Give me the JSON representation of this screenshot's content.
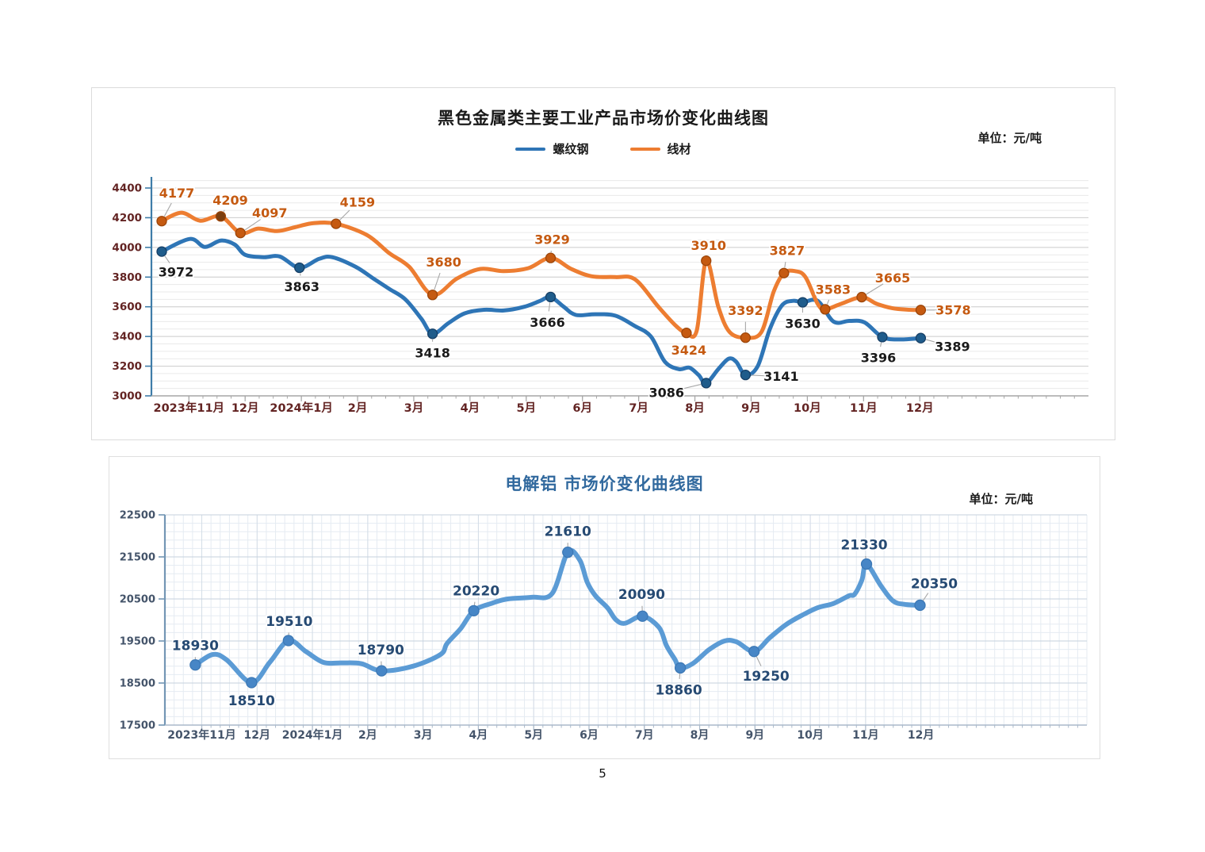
{
  "page_number": "5",
  "chart_data": [
    {
      "type": "line",
      "title": "黑色金属类主要工业产品市场价变化曲线图",
      "unit_label": "单位：元/吨",
      "legend_position": "top-center",
      "grid": "horizontal-minor-on",
      "ylim": [
        3000,
        4400
      ],
      "yticks": [
        3000,
        3200,
        3400,
        3600,
        3800,
        4000,
        4200,
        4400
      ],
      "minor_y_unit": 50,
      "axis_color": "#3E7CA8",
      "x_axis_color": "#A6A6A6",
      "tick_label_color": "#632423",
      "x_start_frac": 0.04,
      "x_step_frac": 0.06,
      "categories": [
        "2023年11月",
        "12月",
        "2024年1月",
        "2月",
        "3月",
        "4月",
        "5月",
        "6月",
        "7月",
        "8月",
        "9月",
        "10月",
        "11月",
        "12月"
      ],
      "series": [
        {
          "name": "螺纹钢",
          "color": "#2E75B6",
          "marker_color": "#1F5C8B",
          "marker_stroke": "#163F66",
          "label_color": "#1A1A1A",
          "points": [
            {
              "x": 0.011,
              "v": 3972,
              "t": "3972",
              "dx": 18,
              "dy": 26
            },
            [
              0.041,
              4057
            ],
            [
              0.057,
              4003
            ],
            [
              0.074,
              4046
            ],
            [
              0.089,
              4019
            ],
            [
              0.1,
              3950
            ],
            [
              0.12,
              3934
            ],
            [
              0.137,
              3939
            ],
            {
              "x": 0.158,
              "v": 3863,
              "t": "3863",
              "dx": 3,
              "dy": 24
            },
            [
              0.179,
              3923
            ],
            [
              0.193,
              3934
            ],
            [
              0.218,
              3869
            ],
            [
              0.237,
              3790
            ],
            [
              0.254,
              3720
            ],
            [
              0.271,
              3650
            ],
            [
              0.288,
              3520
            ],
            {
              "x": 0.3,
              "v": 3418,
              "t": "3418",
              "dx": 0,
              "dy": 24
            },
            [
              0.317,
              3490
            ],
            [
              0.334,
              3555
            ],
            [
              0.355,
              3580
            ],
            [
              0.376,
              3575
            ],
            [
              0.398,
              3600
            ],
            [
              0.415,
              3640
            ],
            {
              "x": 0.426,
              "v": 3666,
              "t": "3666",
              "dx": -4,
              "dy": 32
            },
            [
              0.44,
              3600
            ],
            [
              0.453,
              3545
            ],
            [
              0.474,
              3550
            ],
            [
              0.495,
              3540
            ],
            [
              0.516,
              3470
            ],
            [
              0.533,
              3400
            ],
            [
              0.548,
              3230
            ],
            [
              0.563,
              3180
            ],
            [
              0.574,
              3190
            ],
            [
              0.584,
              3140
            ],
            {
              "x": 0.592,
              "v": 3086,
              "t": "3086",
              "dx": -50,
              "dy": 12
            },
            [
              0.605,
              3180
            ],
            [
              0.616,
              3250
            ],
            [
              0.624,
              3230
            ],
            {
              "x": 0.634,
              "v": 3141,
              "t": "3141",
              "dx": 45,
              "dy": 2
            },
            [
              0.647,
              3200
            ],
            [
              0.66,
              3450
            ],
            [
              0.673,
              3610
            ],
            [
              0.685,
              3640
            ],
            {
              "x": 0.695,
              "v": 3630,
              "t": "3630",
              "dx": 0,
              "dy": 27
            },
            [
              0.711,
              3640
            ],
            [
              0.728,
              3500
            ],
            [
              0.745,
              3505
            ],
            [
              0.761,
              3495
            ],
            {
              "x": 0.78,
              "v": 3396,
              "t": "3396",
              "dx": -5,
              "dy": 26
            },
            [
              0.799,
              3380
            ],
            {
              "x": 0.821,
              "v": 3389,
              "t": "3389",
              "dx": 40,
              "dy": 11
            }
          ]
        },
        {
          "name": "线材",
          "color": "#ED7D31",
          "marker_color": "#C55A11",
          "marker_stroke": "#9C4509",
          "label_color": "#C55A11",
          "points": [
            {
              "x": 0.011,
              "v": 4177,
              "t": "4177",
              "dx": 19,
              "dy": -35
            },
            [
              0.032,
              4234
            ],
            [
              0.052,
              4180
            ],
            {
              "x": 0.074,
              "v": 4209,
              "t": "4209",
              "dx": 12,
              "dy": -20,
              "mc": "#7B3F10"
            },
            {
              "x": 0.095,
              "v": 4097,
              "t": "4097",
              "dx": 37,
              "dy": -25
            },
            [
              0.114,
              4127
            ],
            [
              0.134,
              4110
            ],
            [
              0.154,
              4137
            ],
            [
              0.173,
              4164
            ],
            {
              "x": 0.197,
              "v": 4159,
              "t": "4159",
              "dx": 27,
              "dy": -27
            },
            [
              0.23,
              4083
            ],
            [
              0.254,
              3960
            ],
            [
              0.275,
              3870
            ],
            {
              "x": 0.3,
              "v": 3680,
              "t": "3680",
              "dx": 14,
              "dy": -41
            },
            [
              0.326,
              3790
            ],
            [
              0.351,
              3855
            ],
            [
              0.376,
              3840
            ],
            [
              0.402,
              3860
            ],
            {
              "x": 0.426,
              "v": 3929,
              "t": "3929",
              "dx": 2,
              "dy": -23
            },
            [
              0.448,
              3855
            ],
            [
              0.47,
              3805
            ],
            [
              0.495,
              3800
            ],
            [
              0.516,
              3785
            ],
            [
              0.541,
              3600
            ],
            [
              0.56,
              3470
            ],
            {
              "x": 0.571,
              "v": 3424,
              "t": "3424",
              "dx": 3,
              "dy": 22
            },
            [
              0.582,
              3440
            ],
            {
              "x": 0.592,
              "v": 3910,
              "t": "3910",
              "dx": 3,
              "dy": -19
            },
            [
              0.605,
              3600
            ],
            [
              0.617,
              3430
            ],
            {
              "x": 0.634,
              "v": 3392,
              "t": "3392",
              "dx": 0,
              "dy": -34
            },
            [
              0.651,
              3430
            ],
            [
              0.664,
              3700
            ],
            {
              "x": 0.675,
              "v": 3827,
              "t": "3827",
              "dx": 4,
              "dy": -28
            },
            [
              0.687,
              3840
            ],
            [
              0.698,
              3800
            ],
            [
              0.711,
              3620
            ],
            {
              "x": 0.719,
              "v": 3583,
              "t": "3583",
              "dx": 10,
              "dy": -25
            },
            [
              0.736,
              3620
            ],
            {
              "x": 0.758,
              "v": 3665,
              "t": "3665",
              "dx": 39,
              "dy": -24
            },
            [
              0.774,
              3620
            ],
            [
              0.791,
              3590
            ],
            [
              0.808,
              3580
            ],
            {
              "x": 0.821,
              "v": 3578,
              "t": "3578",
              "dx": 41,
              "dy": 0
            }
          ]
        }
      ]
    },
    {
      "type": "line",
      "title": "电解铝  市场价变化曲线图",
      "title_color": "#31699E",
      "unit_label": "单位：元/吨",
      "grid": "fine-both",
      "ylim": [
        17500,
        22500
      ],
      "yticks": [
        17500,
        18500,
        19500,
        20500,
        21500,
        22500
      ],
      "minor_y_unit": 200,
      "axis_color": "#7396B4",
      "x_axis_color": "#AAB9CA",
      "tick_label_color": "#44546A",
      "x_start_frac": 0.04,
      "x_step_frac": 0.06,
      "categories": [
        "2023年11月",
        "12月",
        "2024年1月",
        "2月",
        "3月",
        "4月",
        "5月",
        "6月",
        "7月",
        "8月",
        "9月",
        "10月",
        "11月",
        "12月"
      ],
      "series": [
        {
          "name": "电解铝",
          "color": "#5B9BD5",
          "marker_color": "#4786C6",
          "marker_stroke": "#3C78B5",
          "label_color": "#264A73",
          "points": [
            {
              "x": 0.033,
              "v": 18930,
              "t": "18930",
              "dx": 0,
              "dy": -24
            },
            [
              0.052,
              19180
            ],
            [
              0.067,
              19050
            ],
            {
              "x": 0.094,
              "v": 18510,
              "t": "18510",
              "dx": 0,
              "dy": 23
            },
            [
              0.114,
              19000
            ],
            {
              "x": 0.134,
              "v": 19510,
              "t": "19510",
              "dx": 1,
              "dy": -24
            },
            [
              0.153,
              19250
            ],
            [
              0.172,
              18990
            ],
            [
              0.192,
              18980
            ],
            [
              0.213,
              18960
            ],
            {
              "x": 0.235,
              "v": 18790,
              "t": "18790",
              "dx": -1,
              "dy": -26
            },
            [
              0.269,
              18900
            ],
            [
              0.299,
              19180
            ],
            [
              0.306,
              19440
            ],
            [
              0.321,
              19800
            ],
            {
              "x": 0.335,
              "v": 20220,
              "t": "20220",
              "dx": 3,
              "dy": -25
            },
            [
              0.355,
              20400
            ],
            [
              0.372,
              20500
            ],
            [
              0.398,
              20540
            ],
            [
              0.42,
              20630
            ],
            {
              "x": 0.437,
              "v": 21610,
              "t": "21610",
              "dx": 0,
              "dy": -26
            },
            [
              0.45,
              21420
            ],
            [
              0.458,
              20900
            ],
            [
              0.467,
              20575
            ],
            [
              0.48,
              20290
            ],
            [
              0.489,
              20010
            ],
            [
              0.499,
              19920
            ],
            {
              "x": 0.518,
              "v": 20090,
              "t": "20090",
              "dx": -1,
              "dy": -27
            },
            [
              0.536,
              19820
            ],
            [
              0.544,
              19390
            ],
            [
              0.553,
              19070
            ],
            {
              "x": 0.559,
              "v": 18860,
              "t": "18860",
              "dx": -2,
              "dy": 28
            },
            [
              0.573,
              18970
            ],
            [
              0.59,
              19290
            ],
            [
              0.607,
              19500
            ],
            [
              0.62,
              19480
            ],
            {
              "x": 0.639,
              "v": 19250,
              "t": "19250",
              "dx": 15,
              "dy": 31
            },
            [
              0.656,
              19575
            ],
            [
              0.673,
              19880
            ],
            [
              0.69,
              20100
            ],
            [
              0.708,
              20290
            ],
            [
              0.725,
              20390
            ],
            [
              0.742,
              20575
            ],
            [
              0.748,
              20610
            ],
            [
              0.756,
              20950
            ],
            {
              "x": 0.761,
              "v": 21330,
              "t": "21330",
              "dx": -3,
              "dy": -24
            },
            [
              0.777,
              20800
            ],
            [
              0.79,
              20450
            ],
            [
              0.803,
              20370
            ],
            {
              "x": 0.819,
              "v": 20350,
              "t": "20350",
              "dx": 18,
              "dy": -27
            }
          ]
        }
      ]
    }
  ]
}
